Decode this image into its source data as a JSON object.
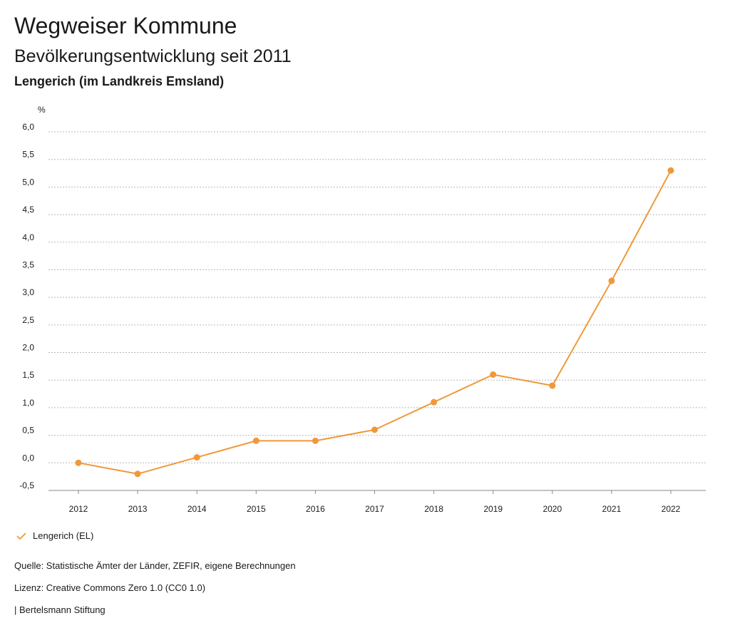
{
  "header": {
    "title": "Wegweiser Kommune",
    "subtitle": "Bevölkerungsentwicklung seit 2011",
    "region": "Lengerich (im Landkreis Emsland)"
  },
  "colors": {
    "series": "#f0983a",
    "grid": "#b8b8b8",
    "text": "#1a1a1a"
  },
  "chart_data": {
    "type": "line",
    "title": "Bevölkerungsentwicklung seit 2011",
    "ylabel": "%",
    "xlabel": "",
    "ylim": [
      -0.5,
      6.0
    ],
    "yticks": [
      "-0,5",
      "0,0",
      "0,5",
      "1,0",
      "1,5",
      "2,0",
      "2,5",
      "3,0",
      "3,5",
      "4,0",
      "4,5",
      "5,0",
      "5,5",
      "6,0"
    ],
    "ytick_values": [
      -0.5,
      0.0,
      0.5,
      1.0,
      1.5,
      2.0,
      2.5,
      3.0,
      3.5,
      4.0,
      4.5,
      5.0,
      5.5,
      6.0
    ],
    "x": [
      "2012",
      "2013",
      "2014",
      "2015",
      "2016",
      "2017",
      "2018",
      "2019",
      "2020",
      "2021",
      "2022"
    ],
    "series": [
      {
        "name": "Lengerich (EL)",
        "values": [
          0.0,
          -0.2,
          0.1,
          0.4,
          0.4,
          0.6,
          1.1,
          1.6,
          1.4,
          3.3,
          5.3
        ]
      }
    ],
    "grid": true,
    "legend": "bottom-left"
  },
  "footer": {
    "source": "Quelle: Statistische Ämter der Länder, ZEFIR, eigene Berechnungen",
    "license": "Lizenz: Creative Commons Zero 1.0 (CC0 1.0)",
    "publisher": "| Bertelsmann Stiftung"
  }
}
